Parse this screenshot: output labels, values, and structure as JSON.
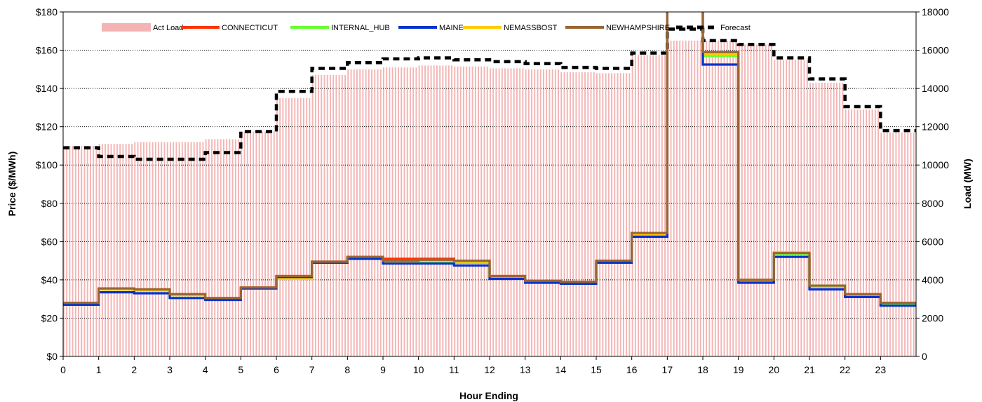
{
  "chart_data": {
    "type": "step-line-with-load-bars",
    "xlabel": "Hour Ending",
    "ylabel_left": "Price ($/MWh)",
    "ylabel_right": "Load (MW)",
    "x_ticks": [
      "0",
      "1",
      "2",
      "3",
      "4",
      "5",
      "6",
      "7",
      "8",
      "9",
      "10",
      "11",
      "12",
      "13",
      "14",
      "15",
      "16",
      "17",
      "18",
      "19",
      "20",
      "21",
      "22",
      "23"
    ],
    "y_left_ticks": [
      "$0",
      "$20",
      "$40",
      "$60",
      "$80",
      "$100",
      "$120",
      "$140",
      "$160",
      "$180"
    ],
    "y_right_ticks": [
      "0",
      "2000",
      "4000",
      "6000",
      "8000",
      "10000",
      "12000",
      "14000",
      "16000",
      "18000"
    ],
    "ylim_left": [
      0,
      180
    ],
    "ylim_right": [
      0,
      18000
    ],
    "xlim": [
      0,
      24
    ],
    "grid": "horizontal dotted",
    "legend_position": "top",
    "legend": [
      "Act Load",
      "CONNECTICUT",
      "INTERNAL_HUB",
      "MAINE",
      "NEMASSBOST",
      "NEWHAMPSHIRE",
      "Forecast"
    ],
    "colors": {
      "act_load": "#f4b4b4",
      "connecticut": "#ff3300",
      "internal_hub": "#66ff33",
      "maine": "#0033cc",
      "nemassbost": "#ffcc00",
      "newhampshire": "#996633",
      "forecast": "#000000"
    },
    "act_load": [
      11000,
      11100,
      11200,
      11200,
      11350,
      11750,
      13500,
      14700,
      15000,
      15100,
      15200,
      15150,
      15050,
      15000,
      14850,
      14800,
      15750,
      16500,
      16500,
      16300,
      15500,
      14300,
      12900,
      11700
    ],
    "forecast": [
      10900,
      10450,
      10300,
      10300,
      10650,
      11750,
      13850,
      15050,
      15350,
      15550,
      15600,
      15500,
      15400,
      15300,
      15100,
      15050,
      15850,
      17100,
      16500,
      16300,
      15600,
      14500,
      13050,
      11800
    ],
    "series": [
      {
        "name": "CONNECTICUT",
        "key": "connecticut",
        "values": [
          28,
          35.5,
          35,
          32.5,
          30.5,
          36,
          42,
          49.5,
          52,
          51,
          51,
          50,
          42,
          39.5,
          39,
          50,
          64,
          200,
          158,
          39.5,
          54,
          37,
          32.5,
          27.5
        ]
      },
      {
        "name": "INTERNAL_HUB",
        "key": "internal_hub",
        "values": [
          27.5,
          35,
          34.5,
          32,
          30,
          35.5,
          41,
          49,
          51.5,
          49.5,
          49.5,
          49,
          41.5,
          39,
          38.5,
          49.5,
          63.5,
          200,
          157,
          39,
          53.5,
          36.5,
          32,
          27
        ]
      },
      {
        "name": "MAINE",
        "key": "maine",
        "values": [
          27,
          33.5,
          33,
          30.5,
          29.5,
          35.5,
          41.5,
          49,
          51,
          48.5,
          48.5,
          47.5,
          40.5,
          38.5,
          38,
          49,
          62.5,
          200,
          152.5,
          38.5,
          52,
          35,
          31,
          26.5
        ]
      },
      {
        "name": "NEMASSBOST",
        "key": "nemassbost",
        "values": [
          28,
          35,
          34.5,
          32,
          30,
          35.5,
          40.5,
          49,
          51.5,
          49.5,
          50,
          49.5,
          42,
          39.5,
          39,
          50,
          64,
          200,
          158,
          39.5,
          54.5,
          37,
          32.5,
          28
        ]
      },
      {
        "name": "NEWHAMPSHIRE",
        "key": "newhampshire",
        "values": [
          28,
          35.5,
          35,
          32.5,
          30.5,
          36,
          42,
          49.5,
          52,
          50,
          50.5,
          50,
          42,
          39.5,
          39,
          50,
          64.5,
          200,
          159,
          40,
          54,
          37,
          32.5,
          28
        ]
      }
    ]
  }
}
